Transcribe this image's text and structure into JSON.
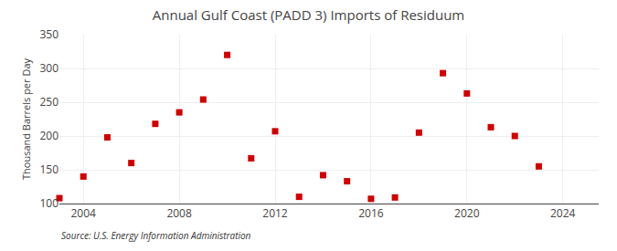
{
  "chart_data": {
    "type": "scatter",
    "title": "Annual Gulf Coast (PADD 3) Imports of Residuum",
    "ylabel": "Thousand Barrels per Day",
    "annotations": [
      "Source: U.S. Energy Information Administration"
    ],
    "x": [
      2003,
      2004,
      2005,
      2006,
      2007,
      2008,
      2009,
      2010,
      2011,
      2012,
      2013,
      2014,
      2015,
      2016,
      2017,
      2018,
      2019,
      2020,
      2021,
      2022,
      2023,
      2024
    ],
    "values": [
      108,
      140,
      198,
      160,
      218,
      235,
      254,
      320,
      167,
      207,
      110,
      142,
      133,
      107,
      109,
      205,
      293,
      263,
      213,
      200,
      155,
      null
    ],
    "color": "#cc0000",
    "marker": "square",
    "xlim": [
      2003.0,
      2025.5
    ],
    "xticks": [
      2004,
      2008,
      2012,
      2016,
      2020,
      2024
    ],
    "ylim": [
      100,
      350
    ],
    "yticks": [
      100,
      150,
      200,
      250,
      300,
      350
    ],
    "grid": true
  }
}
